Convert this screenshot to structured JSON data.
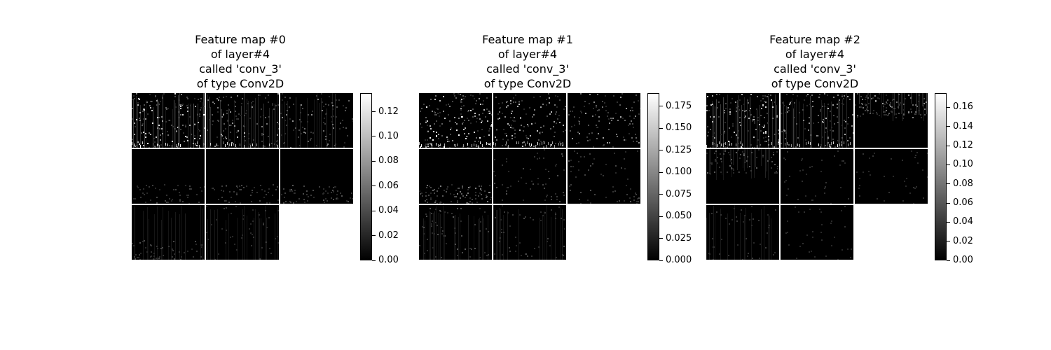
{
  "chart_data": [
    {
      "type": "heatmap",
      "title_lines": [
        "Feature map #0",
        "of layer#4",
        "called 'conv_3'",
        "of type Conv2D"
      ],
      "colormap": "gray",
      "colorbar": {
        "min": 0.0,
        "max": 0.135,
        "ticks": [
          "0.00",
          "0.02",
          "0.04",
          "0.06",
          "0.08",
          "0.10",
          "0.12"
        ],
        "tick_values": [
          0,
          0.02,
          0.04,
          0.06,
          0.08,
          0.1,
          0.12
        ]
      },
      "grid": {
        "rows": 3,
        "cols": 3,
        "tiles": 8
      },
      "tile_activity": [
        {
          "base": 0.5,
          "band": "full",
          "vstripe": true
        },
        {
          "base": 0.35,
          "band": "full",
          "vstripe": true
        },
        {
          "base": 0.25,
          "band": "full",
          "vstripe": true
        },
        {
          "base": 0.08,
          "band": "bottom",
          "vstripe": false
        },
        {
          "base": 0.08,
          "band": "bottom",
          "vstripe": false
        },
        {
          "base": 0.12,
          "band": "bottom",
          "vstripe": false
        },
        {
          "base": 0.1,
          "band": "bottom",
          "vstripe": true
        },
        {
          "base": 0.06,
          "band": "full",
          "vstripe": true
        }
      ]
    },
    {
      "type": "heatmap",
      "title_lines": [
        "Feature map #1",
        "of layer#4",
        "called 'conv_3'",
        "of type Conv2D"
      ],
      "colormap": "gray",
      "colorbar": {
        "min": 0.0,
        "max": 0.19,
        "ticks": [
          "0.000",
          "0.025",
          "0.050",
          "0.075",
          "0.100",
          "0.125",
          "0.150",
          "0.175"
        ],
        "tick_values": [
          0,
          0.025,
          0.05,
          0.075,
          0.1,
          0.125,
          0.15,
          0.175
        ]
      },
      "grid": {
        "rows": 3,
        "cols": 3,
        "tiles": 8
      },
      "tile_activity": [
        {
          "base": 0.55,
          "band": "full",
          "vstripe": false
        },
        {
          "base": 0.4,
          "band": "full",
          "vstripe": false
        },
        {
          "base": 0.3,
          "band": "full",
          "vstripe": false
        },
        {
          "base": 0.25,
          "band": "bottom",
          "vstripe": false
        },
        {
          "base": 0.1,
          "band": "full",
          "vstripe": false
        },
        {
          "base": 0.12,
          "band": "full",
          "vstripe": false
        },
        {
          "base": 0.12,
          "band": "full",
          "vstripe": true
        },
        {
          "base": 0.08,
          "band": "full",
          "vstripe": true
        }
      ]
    },
    {
      "type": "heatmap",
      "title_lines": [
        "Feature map #2",
        "of layer#4",
        "called 'conv_3'",
        "of type Conv2D"
      ],
      "colormap": "gray",
      "colorbar": {
        "min": 0.0,
        "max": 0.175,
        "ticks": [
          "0.00",
          "0.02",
          "0.04",
          "0.06",
          "0.08",
          "0.10",
          "0.12",
          "0.14",
          "0.16"
        ],
        "tick_values": [
          0,
          0.02,
          0.04,
          0.06,
          0.08,
          0.1,
          0.12,
          0.14,
          0.16
        ]
      },
      "grid": {
        "rows": 3,
        "cols": 3,
        "tiles": 8
      },
      "tile_activity": [
        {
          "base": 0.45,
          "band": "full",
          "vstripe": true
        },
        {
          "base": 0.35,
          "band": "full",
          "vstripe": true
        },
        {
          "base": 0.3,
          "band": "top",
          "vstripe": true
        },
        {
          "base": 0.15,
          "band": "top",
          "vstripe": true
        },
        {
          "base": 0.03,
          "band": "full",
          "vstripe": false
        },
        {
          "base": 0.03,
          "band": "full",
          "vstripe": false
        },
        {
          "base": 0.05,
          "band": "full",
          "vstripe": true
        },
        {
          "base": 0.02,
          "band": "full",
          "vstripe": false
        }
      ]
    }
  ]
}
